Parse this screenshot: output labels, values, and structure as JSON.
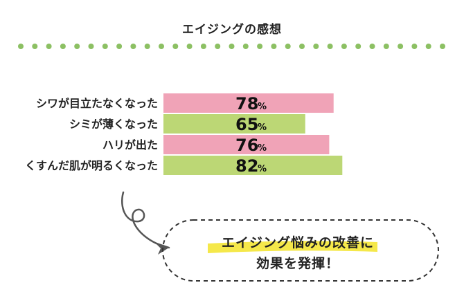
{
  "page": {
    "title": "エイジングの感想"
  },
  "chart_data": {
    "type": "bar",
    "orientation": "horizontal",
    "categories": [
      "シワが目立たなくなった",
      "シミが薄くなった",
      "ハリが出た",
      "くすんだ肌が明るくなった"
    ],
    "values": [
      78,
      65,
      76,
      82
    ],
    "value_unit": "%",
    "xlim": [
      0,
      100
    ],
    "bar_colors": [
      "#f0a3b7",
      "#bcd775",
      "#f0a3b7",
      "#bcd775"
    ],
    "grid": false
  },
  "callout": {
    "line1": "エイジング悩みの改善に",
    "line2": "効果を発揮！",
    "highlight_color": "#f5e84a"
  },
  "colors": {
    "dots": "#8cc063",
    "text": "#222222"
  }
}
